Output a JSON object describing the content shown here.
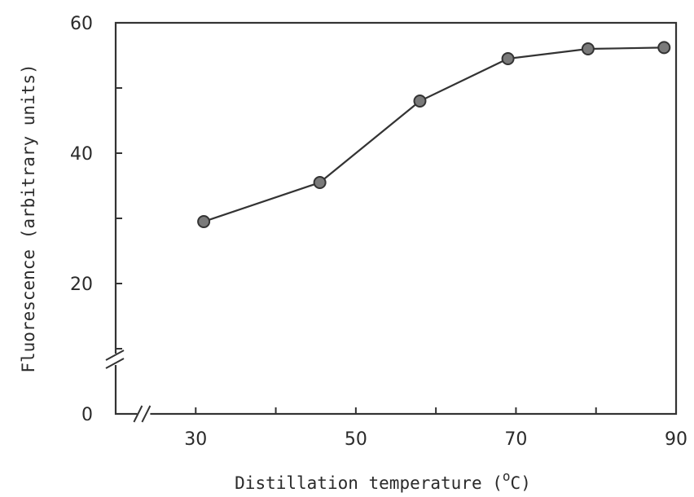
{
  "chart_data": {
    "type": "line",
    "title": "",
    "xlabel": "Distillation temperature",
    "xlabel_unit_super": "o",
    "xlabel_unit": "C",
    "ylabel": "Fluorescence (arbitrary units)",
    "xlim": [
      20,
      90
    ],
    "ylim": [
      0,
      60
    ],
    "axis_breaks": true,
    "grid": false,
    "x_ticks": [
      {
        "value": 20,
        "label": ""
      },
      {
        "value": 30,
        "label": "30"
      },
      {
        "value": 40,
        "label": ""
      },
      {
        "value": 50,
        "label": "50"
      },
      {
        "value": 60,
        "label": ""
      },
      {
        "value": 70,
        "label": "70"
      },
      {
        "value": 80,
        "label": ""
      },
      {
        "value": 90,
        "label": "90"
      }
    ],
    "y_ticks": [
      {
        "value": 0,
        "label": "0"
      },
      {
        "value": 10,
        "label": ""
      },
      {
        "value": 20,
        "label": "20"
      },
      {
        "value": 30,
        "label": ""
      },
      {
        "value": 40,
        "label": "40"
      },
      {
        "value": 50,
        "label": ""
      },
      {
        "value": 60,
        "label": "60"
      }
    ],
    "series": [
      {
        "x": [
          31,
          45.5,
          58,
          69,
          79,
          88.5
        ],
        "y": [
          29.5,
          35.5,
          48,
          54.5,
          56,
          56.2
        ]
      }
    ]
  }
}
